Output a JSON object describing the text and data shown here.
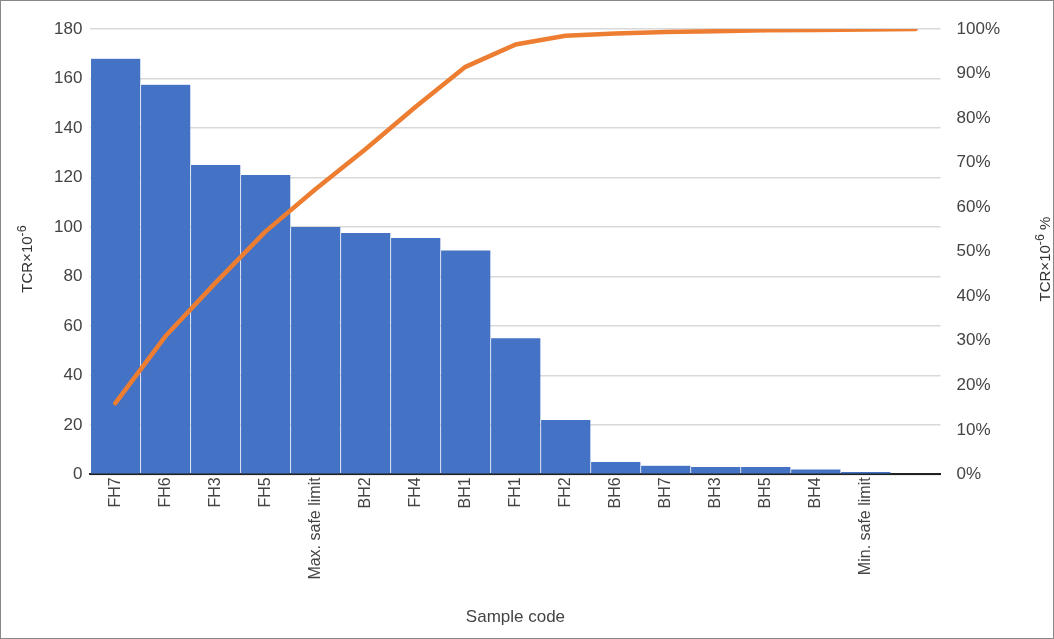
{
  "chart_data": {
    "type": "bar",
    "xlabel": "Sample code",
    "ylabel": "TCR×10$^{-6}$",
    "y2label": "TCR×10$^{-6}$ %",
    "categories": [
      "FH7",
      "FH6",
      "FH3",
      "FH5",
      "Max. safe limit",
      "BH2",
      "FH4",
      "BH1",
      "FH1",
      "FH2",
      "BH6",
      "BH7",
      "BH3",
      "BH5",
      "BH4",
      "Min. safe limit",
      null
    ],
    "series": [
      {
        "color": "#4472c4",
        "values": [
          168,
          157.5,
          125,
          121,
          100,
          97.5,
          95.5,
          90.5,
          55,
          22,
          5,
          3.5,
          3,
          3,
          2,
          1,
          null
        ]
      },
      {
        "type": "line",
        "axis": "y2",
        "color": "#ed7d31",
        "values": [
          16,
          31,
          43,
          54.5,
          64,
          73,
          82.5,
          91.5,
          96.5,
          98.5,
          99,
          99.3,
          99.5,
          99.7,
          99.8,
          99.9,
          100
        ]
      }
    ],
    "ylim": [
      0,
      180
    ],
    "yticks": [
      0,
      20,
      40,
      60,
      80,
      100,
      120,
      140,
      160,
      180
    ],
    "y2lim": [
      0,
      100
    ],
    "y2ticks": [
      {
        "value": 0,
        "label": "0%"
      },
      {
        "value": 10,
        "label": "10%"
      },
      {
        "value": 20,
        "label": "20%"
      },
      {
        "value": 30,
        "label": "30%"
      },
      {
        "value": 40,
        "label": "40%"
      },
      {
        "value": 50,
        "label": "50%"
      },
      {
        "value": 60,
        "label": "60%"
      },
      {
        "value": 70,
        "label": "70%"
      },
      {
        "value": 80,
        "label": "80%"
      },
      {
        "value": 90,
        "label": "90%"
      },
      {
        "value": 100,
        "label": "100%"
      }
    ],
    "grid": "y",
    "legend": false,
    "marker": "none",
    "line_style": "solid"
  }
}
